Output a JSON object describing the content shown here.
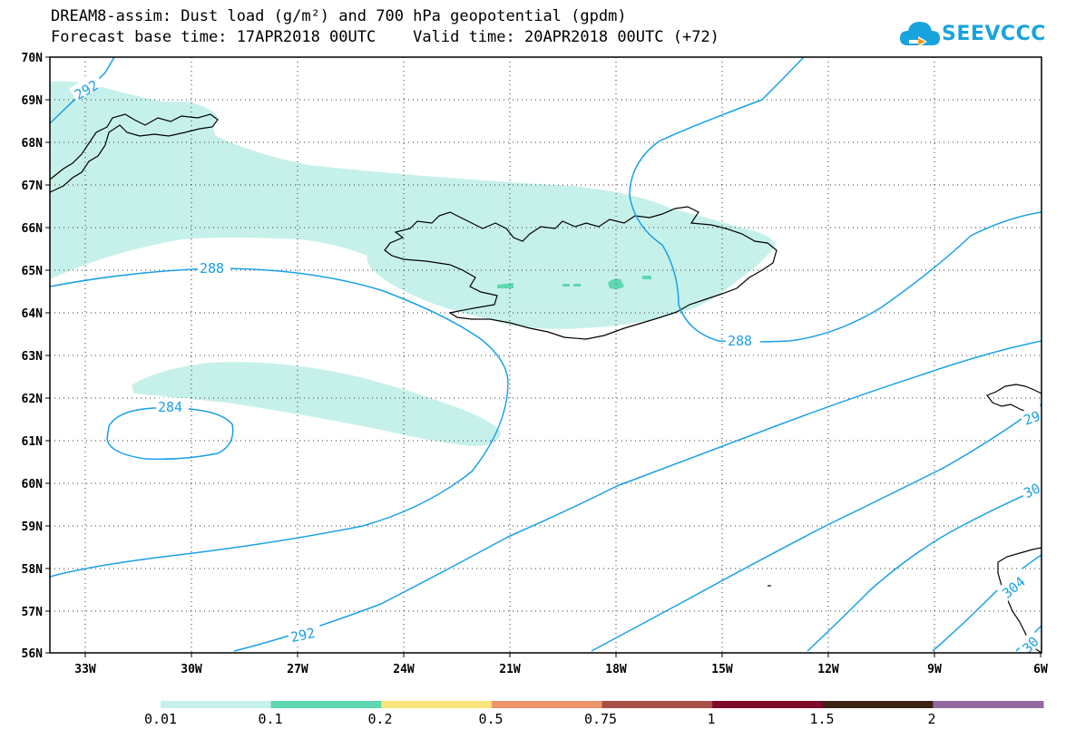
{
  "header": {
    "title_line1": "DREAM8-assim: Dust load (g/m²) and 700 hPa geopotential (gpdm)",
    "title_line2": "Forecast base time: 17APR2018 00UTC    Valid time: 20APR2018 00UTC (+72)"
  },
  "logo": {
    "text": "SEEVCCC",
    "icon": "cloud-icon"
  },
  "map": {
    "region": "Iceland and North Atlantic",
    "lat_range": [
      "56N",
      "70N"
    ],
    "lon_range": [
      "34W",
      "6W"
    ],
    "lat_labels": [
      "70N",
      "69N",
      "68N",
      "67N",
      "66N",
      "65N",
      "64N",
      "63N",
      "62N",
      "61N",
      "60N",
      "59N",
      "58N",
      "57N",
      "56N"
    ],
    "lon_labels": [
      "33W",
      "30W",
      "27W",
      "24W",
      "21W",
      "18W",
      "15W",
      "12W",
      "9W",
      "6W"
    ],
    "contour_color": "#1aa0e6",
    "dust_color_low": "#c6f1ea",
    "dust_color_mid": "#5dd8b0",
    "contour_labels": [
      "292",
      "288",
      "284",
      "288",
      "292",
      "29",
      "30",
      "304",
      "30"
    ]
  },
  "legend": {
    "thresholds": [
      "0.01",
      "0.1",
      "0.2",
      "0.5",
      "0.75",
      "1",
      "1.5",
      "2"
    ],
    "colors": [
      "#c6f1ea",
      "#5dd8b0",
      "#f8e67c",
      "#ee946a",
      "#a8504a",
      "#7e0a2c",
      "#3c2414",
      "#93699e"
    ]
  }
}
